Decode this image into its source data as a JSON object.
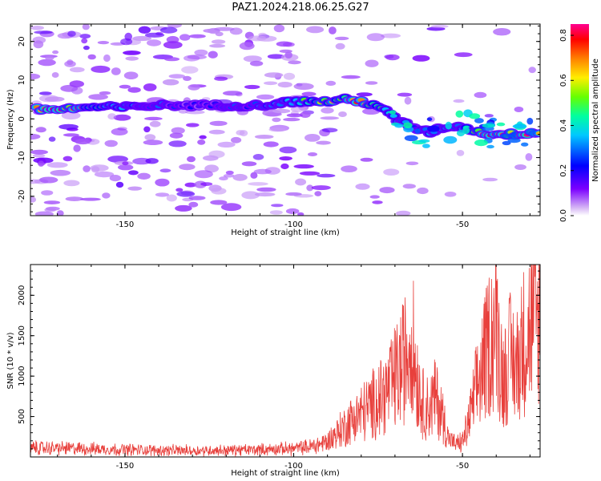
{
  "title": "PAZ1.2024.218.06.25.G27",
  "chart_data": [
    {
      "type": "heatmap",
      "xlabel": "Height of straight line (km)",
      "ylabel": "Frequency (Hz)",
      "xlim": [
        -178,
        -27
      ],
      "ylim": [
        -25,
        24.5
      ],
      "xticks": [
        "-150",
        "-100",
        "-50"
      ],
      "yticks": [
        "-20",
        "-10",
        "0",
        "10",
        "20"
      ],
      "colorbar": {
        "label": "Normalized spectral amplitude",
        "range": [
          0.0,
          0.85
        ],
        "ticks": [
          "0.0",
          "0.2",
          "0.4",
          "0.6",
          "0.8"
        ]
      },
      "ridge": {
        "x": [
          -176,
          -170,
          -160,
          -150,
          -140,
          -130,
          -120,
          -110,
          -100,
          -95,
          -90,
          -85,
          -80,
          -75,
          -70,
          -65,
          -60,
          -55,
          -50,
          -45,
          -40,
          -35,
          -30,
          -27
        ],
        "y": [
          2.5,
          2.5,
          3,
          3,
          3.5,
          3.5,
          3.5,
          3.5,
          4.5,
          4.5,
          4.5,
          5,
          4.5,
          3.5,
          0,
          -2,
          -3.5,
          -2,
          -2,
          -3.5,
          -4,
          -4,
          -3.5,
          -3.5
        ],
        "amplitude": [
          0.8,
          0.85,
          0.45,
          0.35,
          0.3,
          0.2,
          0.25,
          0.3,
          0.45,
          0.5,
          0.6,
          0.55,
          0.75,
          0.5,
          0.35,
          0.3,
          0.35,
          0.3,
          0.35,
          0.6,
          0.75,
          0.6,
          0.8,
          0.7
        ]
      }
    },
    {
      "type": "line",
      "xlabel": "Height of straight line (km)",
      "ylabel": "SNR (10 * v/v)",
      "xlim": [
        -178,
        -27
      ],
      "ylim": [
        0,
        2380
      ],
      "xticks": [
        "-150",
        "-100",
        "-50"
      ],
      "yticks": [
        "500",
        "1000",
        "1500",
        "2000"
      ],
      "color": "#e8403c",
      "series": [
        {
          "x": [
            -178,
            -165,
            -150,
            -140,
            -130,
            -120,
            -110,
            -100,
            -95,
            -90,
            -86,
            -82,
            -78,
            -75,
            -72,
            -70,
            -68,
            -66,
            -65,
            -64,
            -62,
            -60,
            -58,
            -56,
            -54,
            -52,
            -50,
            -48,
            -46,
            -44,
            -42,
            -40,
            -38,
            -36,
            -34,
            -32,
            -30,
            -28,
            -27
          ],
          "y": [
            150,
            140,
            120,
            110,
            105,
            110,
            120,
            140,
            170,
            250,
            450,
            650,
            800,
            950,
            1100,
            1300,
            1500,
            1800,
            2050,
            1500,
            900,
            800,
            1000,
            700,
            300,
            200,
            250,
            600,
            1100,
            1500,
            1900,
            2200,
            1300,
            1650,
            1500,
            1900,
            2150,
            2200,
            2300
          ]
        }
      ]
    }
  ]
}
